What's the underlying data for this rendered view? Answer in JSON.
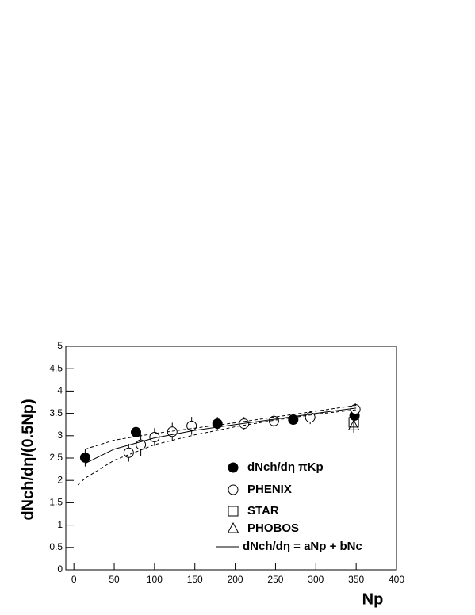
{
  "chart_data": {
    "type": "scatter",
    "x_label": "Np",
    "y_label": "dNch/dη/(0.5Np)",
    "xlim": [
      -10,
      400
    ],
    "xticks": [
      0,
      50,
      100,
      150,
      200,
      250,
      300,
      350,
      400
    ],
    "ylim": [
      0,
      5
    ],
    "yticks": [
      0,
      0.5,
      1,
      1.5,
      2,
      2.5,
      3,
      3.5,
      4,
      4.5,
      5
    ],
    "series": [
      {
        "name": "dNch/dη πKp",
        "color": "#000000",
        "marker": "filled-circle",
        "x": [
          14,
          77,
          178,
          272,
          348
        ],
        "values": [
          2.51,
          3.08,
          3.27,
          3.36,
          3.45
        ],
        "errors": [
          0.2,
          0.15,
          0.15,
          0.1,
          0.15
        ]
      },
      {
        "name": "PHENIX",
        "color": "#000000",
        "marker": "open-circle",
        "x": [
          68,
          83,
          100,
          122,
          146,
          211,
          248,
          293,
          349
        ],
        "values": [
          2.62,
          2.8,
          2.97,
          3.09,
          3.22,
          3.27,
          3.33,
          3.41,
          3.59
        ],
        "errors": [
          0.2,
          0.25,
          0.2,
          0.2,
          0.2,
          0.15,
          0.15,
          0.15,
          0.15
        ]
      },
      {
        "name": "STAR",
        "color": "#000000",
        "marker": "open-square",
        "x": [
          347
        ],
        "values": [
          3.3
        ],
        "errors": [
          0.15
        ]
      },
      {
        "name": "PHOBOS",
        "color": "#000000",
        "marker": "open-triangle",
        "x": [
          347
        ],
        "values": [
          3.22
        ],
        "errors": [
          0.15
        ]
      },
      {
        "name": "dNch/dη = aNp + bNc",
        "color": "#000000",
        "marker": "solid-line",
        "x": [
          14,
          50,
          100,
          150,
          200,
          250,
          300,
          350
        ],
        "values": [
          2.38,
          2.7,
          2.95,
          3.12,
          3.25,
          3.37,
          3.5,
          3.62
        ]
      },
      {
        "color": "#000000",
        "marker": "dashed-line",
        "x": [
          14,
          50,
          100,
          150,
          200,
          250,
          300,
          350
        ],
        "values": [
          2.7,
          2.9,
          3.05,
          3.17,
          3.29,
          3.42,
          3.55,
          3.68
        ]
      },
      {
        "color": "#000000",
        "marker": "dashed-line",
        "x": [
          5,
          14,
          50,
          100,
          150,
          200,
          250,
          300,
          350
        ],
        "values": [
          1.9,
          2.05,
          2.45,
          2.8,
          3.02,
          3.2,
          3.35,
          3.48,
          3.58
        ]
      }
    ]
  }
}
